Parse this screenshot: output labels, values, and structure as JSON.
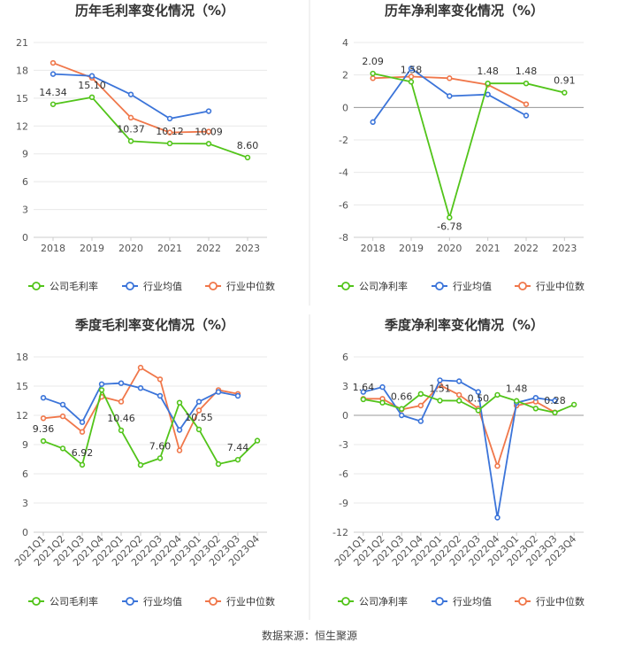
{
  "source_label": "数据来源：恒生聚源",
  "colors": {
    "company": "#52c41a",
    "industry_avg": "#3b74d9",
    "industry_median": "#f0774a"
  },
  "chart_data": [
    {
      "type": "line",
      "title": "历年毛利率变化情况（%）",
      "categories": [
        "2018",
        "2019",
        "2020",
        "2021",
        "2022",
        "2023"
      ],
      "ylim": [
        0,
        21
      ],
      "yticks": [
        0,
        3,
        6,
        9,
        12,
        15,
        18,
        21
      ],
      "series": [
        {
          "name": "公司毛利率",
          "key": "company",
          "values": [
            14.34,
            15.1,
            10.37,
            10.12,
            10.09,
            8.6
          ]
        },
        {
          "name": "行业均值",
          "key": "industry_avg",
          "values": [
            17.6,
            17.4,
            15.4,
            12.8,
            13.6,
            null
          ]
        },
        {
          "name": "行业中位数",
          "key": "industry_median",
          "values": [
            18.8,
            17.2,
            12.9,
            11.3,
            11.4,
            null
          ]
        }
      ],
      "data_labels": [
        {
          "index": 0,
          "text": "14.34"
        },
        {
          "index": 1,
          "text": "15.10"
        },
        {
          "index": 2,
          "text": "10.37"
        },
        {
          "index": 3,
          "text": "10.12"
        },
        {
          "index": 4,
          "text": "10.09"
        },
        {
          "index": 5,
          "text": "8.60"
        }
      ]
    },
    {
      "type": "line",
      "title": "历年净利率变化情况（%）",
      "categories": [
        "2018",
        "2019",
        "2020",
        "2021",
        "2022",
        "2023"
      ],
      "ylim": [
        -8,
        4
      ],
      "yticks": [
        -8,
        -6,
        -4,
        -2,
        0,
        2,
        4
      ],
      "series": [
        {
          "name": "公司净利率",
          "key": "company",
          "values": [
            2.09,
            1.58,
            -6.78,
            1.48,
            1.48,
            0.91
          ]
        },
        {
          "name": "行业均值",
          "key": "industry_avg",
          "values": [
            -0.9,
            2.4,
            0.7,
            0.8,
            -0.5,
            null
          ]
        },
        {
          "name": "行业中位数",
          "key": "industry_median",
          "values": [
            1.8,
            1.9,
            1.8,
            1.4,
            0.2,
            null
          ]
        }
      ],
      "data_labels": [
        {
          "index": 0,
          "text": "2.09"
        },
        {
          "index": 1,
          "text": "1.58"
        },
        {
          "index": 2,
          "text": "-6.78"
        },
        {
          "index": 3,
          "text": "1.48"
        },
        {
          "index": 4,
          "text": "1.48"
        },
        {
          "index": 5,
          "text": "0.91"
        }
      ]
    },
    {
      "type": "line",
      "title": "季度毛利率变化情况（%）",
      "categories": [
        "2021Q1",
        "2021Q2",
        "2021Q3",
        "2021Q4",
        "2022Q1",
        "2022Q2",
        "2022Q3",
        "2022Q4",
        "2023Q1",
        "2023Q2",
        "2023Q3",
        "2023Q4"
      ],
      "ylim": [
        0,
        18
      ],
      "yticks": [
        0,
        3,
        6,
        9,
        12,
        15,
        18
      ],
      "rotate_x": true,
      "series": [
        {
          "name": "公司毛利率",
          "key": "company",
          "values": [
            9.36,
            8.6,
            6.92,
            14.6,
            10.46,
            6.9,
            7.6,
            13.3,
            10.55,
            7.0,
            7.44,
            9.4
          ]
        },
        {
          "name": "行业均值",
          "key": "industry_avg",
          "values": [
            13.8,
            13.1,
            11.3,
            15.2,
            15.3,
            14.8,
            14.0,
            10.5,
            13.4,
            14.4,
            14.0,
            null
          ]
        },
        {
          "name": "行业中位数",
          "key": "industry_median",
          "values": [
            11.7,
            11.9,
            10.3,
            13.9,
            13.4,
            16.9,
            15.7,
            8.4,
            12.5,
            14.6,
            14.2,
            null
          ]
        }
      ],
      "data_labels": [
        {
          "index": 0,
          "text": "9.36"
        },
        {
          "index": 2,
          "text": "6.92"
        },
        {
          "index": 4,
          "text": "10.46"
        },
        {
          "index": 6,
          "text": "7.60"
        },
        {
          "index": 8,
          "text": "10.55"
        },
        {
          "index": 10,
          "text": "7.44"
        }
      ]
    },
    {
      "type": "line",
      "title": "季度净利率变化情况（%）",
      "categories": [
        "2021Q1",
        "2021Q2",
        "2021Q3",
        "2021Q4",
        "2022Q1",
        "2022Q2",
        "2022Q3",
        "2022Q4",
        "2023Q1",
        "2023Q2",
        "2023Q3",
        "2023Q4"
      ],
      "ylim": [
        -12,
        6
      ],
      "yticks": [
        -12,
        -9,
        -6,
        -3,
        0,
        3,
        6
      ],
      "rotate_x": true,
      "series": [
        {
          "name": "公司净利率",
          "key": "company",
          "values": [
            1.64,
            1.3,
            0.66,
            2.2,
            1.51,
            1.5,
            0.5,
            2.1,
            1.48,
            0.7,
            0.28,
            1.1
          ]
        },
        {
          "name": "行业均值",
          "key": "industry_avg",
          "values": [
            2.4,
            2.9,
            0.0,
            -0.6,
            3.6,
            3.5,
            2.4,
            -10.5,
            1.3,
            1.8,
            1.5,
            null
          ]
        },
        {
          "name": "行业中位数",
          "key": "industry_median",
          "values": [
            1.7,
            1.7,
            0.6,
            1.0,
            3.1,
            2.1,
            0.7,
            -5.2,
            1.0,
            1.4,
            0.3,
            null
          ]
        }
      ],
      "data_labels": [
        {
          "index": 0,
          "text": "1.64"
        },
        {
          "index": 2,
          "text": "0.66"
        },
        {
          "index": 4,
          "text": "1.51"
        },
        {
          "index": 6,
          "text": "0.50"
        },
        {
          "index": 8,
          "text": "1.48"
        },
        {
          "index": 10,
          "text": "0.28"
        }
      ]
    }
  ]
}
